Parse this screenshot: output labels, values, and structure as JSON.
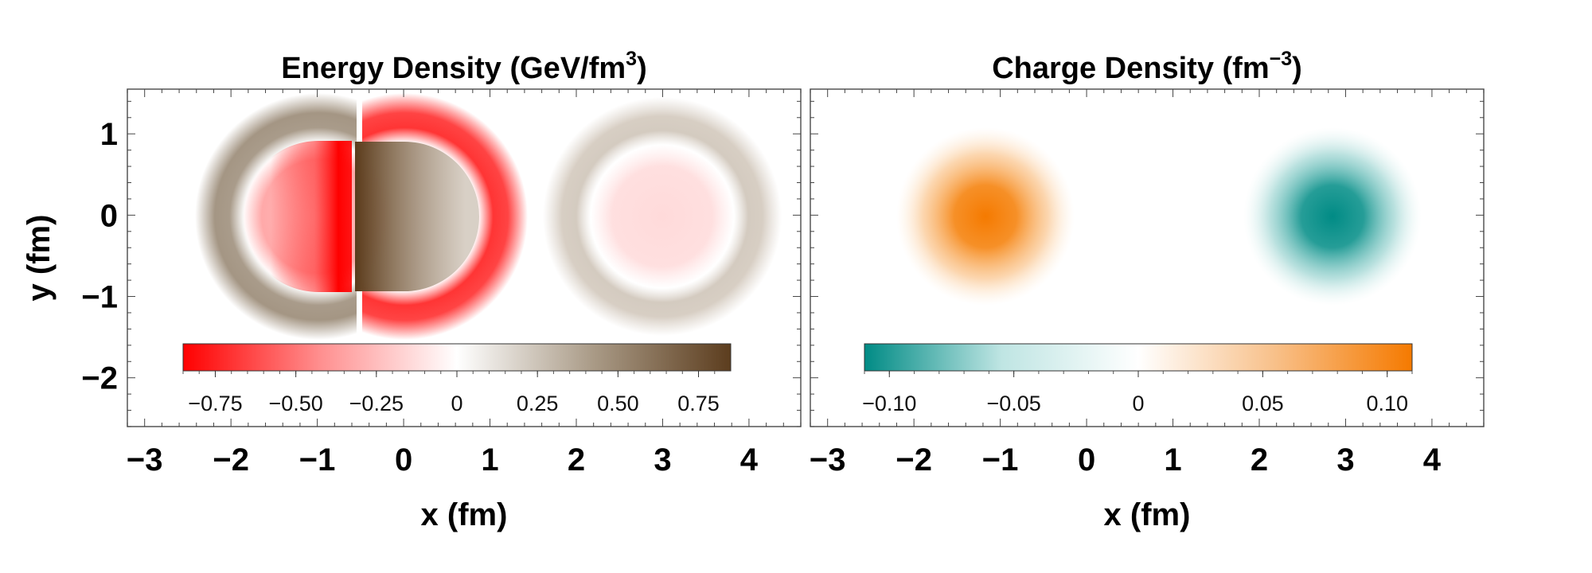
{
  "chart_data": [
    {
      "type": "heatmap",
      "title": "Energy Density (GeV/fm",
      "title_sup": "3",
      "title_close": ")",
      "xlabel": "x (fm)",
      "ylabel": "y (fm)",
      "xlim": [
        -3.2,
        4.6
      ],
      "ylim": [
        -2.6,
        1.55
      ],
      "xticks": [
        -3,
        -2,
        -1,
        0,
        1,
        2,
        3,
        4
      ],
      "xtick_labels": [
        "−3",
        "−2",
        "−1",
        "0",
        "1",
        "2",
        "3",
        "4"
      ],
      "yticks": [
        1,
        0,
        -1,
        -2
      ],
      "ytick_labels": [
        "1",
        "0",
        "−1",
        "−2"
      ],
      "features": [
        {
          "name": "left-ring",
          "center": [
            -1.0,
            0.0
          ],
          "inner_radius": 0.7,
          "outer_radius": 1.05,
          "sign": "positive",
          "clipped_by": "right-ring"
        },
        {
          "name": "left-core",
          "center": [
            -1.0,
            0.0
          ],
          "radius": 0.62,
          "sign": "negative",
          "strongest_near_x": -0.45
        },
        {
          "name": "right-ring",
          "center": [
            0.0,
            0.0
          ],
          "inner_radius": 0.7,
          "outer_radius": 1.05,
          "sign": "negative",
          "opening": "left"
        },
        {
          "name": "right-core",
          "center": [
            0.0,
            0.0
          ],
          "radius": 0.62,
          "sign": "positive",
          "strongest_near_x": -0.5
        },
        {
          "name": "isolated-ring",
          "center": [
            3.0,
            0.0
          ],
          "inner_radius": 0.65,
          "outer_radius": 1.0,
          "sign": "positive",
          "intensity": "weak"
        },
        {
          "name": "isolated-core",
          "center": [
            3.0,
            0.0
          ],
          "radius": 0.55,
          "sign": "negative",
          "intensity": "weak"
        }
      ],
      "colorbar": {
        "range": [
          -0.85,
          0.85
        ],
        "ticks": [
          -0.75,
          -0.5,
          -0.25,
          0,
          0.25,
          0.5,
          0.75
        ],
        "tick_labels": [
          "−0.75",
          "−0.50",
          "−0.25",
          "0",
          "0.25",
          "0.50",
          "0.75"
        ],
        "colors": [
          "#ff0000",
          "#ff8f8f",
          "#ffffff",
          "#a99a86",
          "#5c3d1e"
        ],
        "placement": "bottom inside"
      }
    },
    {
      "type": "heatmap",
      "title": "Charge Density (fm",
      "title_sup": "−3",
      "title_close": ")",
      "xlabel": "x (fm)",
      "ylabel": "",
      "xlim": [
        -3.2,
        4.6
      ],
      "ylim": [
        -2.6,
        1.55
      ],
      "xticks": [
        -3,
        -2,
        -1,
        0,
        1,
        2,
        3,
        4
      ],
      "xtick_labels": [
        "−3",
        "−2",
        "−1",
        "0",
        "1",
        "2",
        "3",
        "4"
      ],
      "features": [
        {
          "name": "positive-blob",
          "center": [
            -1.0,
            0.0
          ],
          "radius": 0.75,
          "sign": "positive"
        },
        {
          "name": "negative-blob",
          "center": [
            3.0,
            0.0
          ],
          "radius": 0.75,
          "sign": "negative"
        }
      ],
      "colorbar": {
        "range": [
          -0.11,
          0.11
        ],
        "ticks": [
          -0.1,
          -0.05,
          0,
          0.05,
          0.1
        ],
        "tick_labels": [
          "−0.10",
          "−0.05",
          "0",
          "0.05",
          "0.10"
        ],
        "colors": [
          "#008b85",
          "#bfe5e3",
          "#ffffff",
          "#f8c089",
          "#f57a00"
        ],
        "placement": "bottom inside"
      }
    }
  ]
}
